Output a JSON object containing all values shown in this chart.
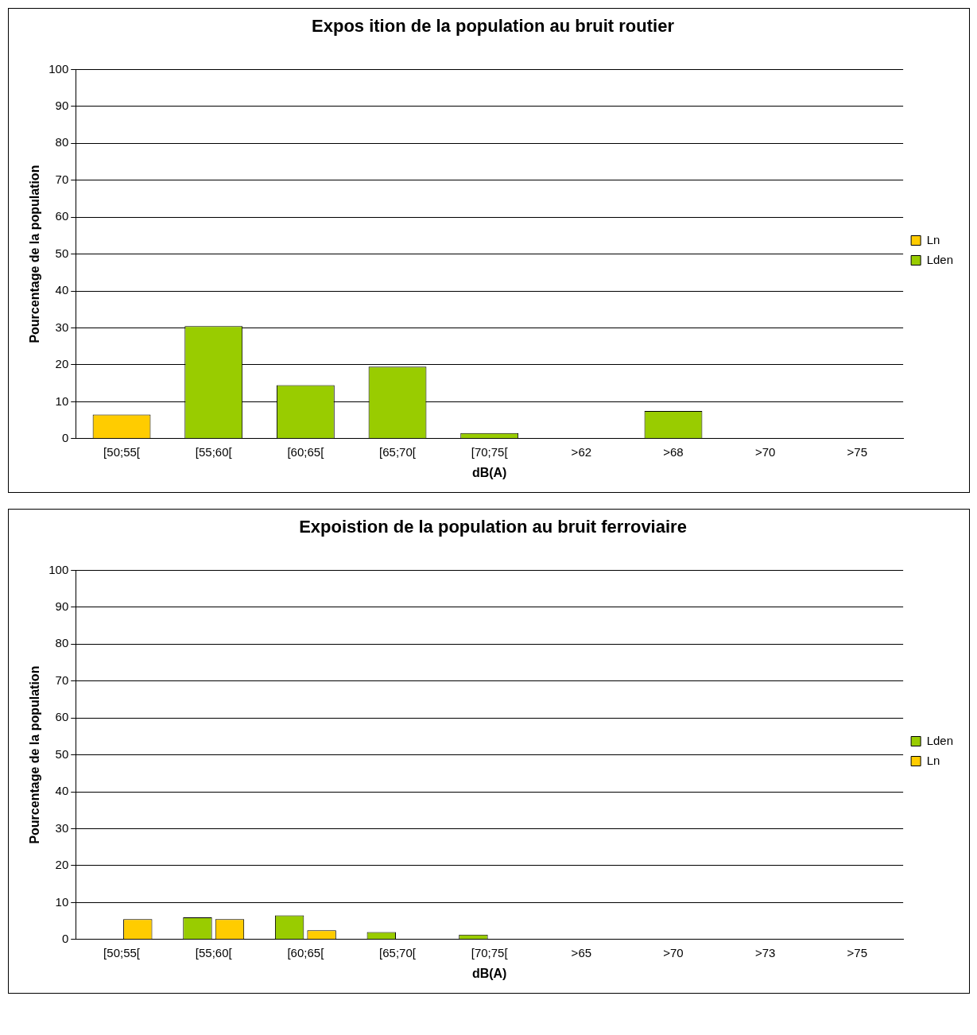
{
  "chart_data": [
    {
      "type": "bar",
      "title": "Expos ition de la population au bruit routier",
      "xlabel": "dB(A)",
      "ylabel": "Pourcentage de la population",
      "categories": [
        "[50;55[",
        "[55;60[",
        "[60;65[",
        "[65;70[",
        "[70;75[",
        ">62",
        ">68",
        ">70",
        ">75"
      ],
      "series": [
        {
          "name": "Ln",
          "color": "#ffcc00",
          "values": [
            6.5,
            null,
            null,
            null,
            null,
            null,
            null,
            null,
            null
          ]
        },
        {
          "name": "Lden",
          "color": "#99cc00",
          "values": [
            null,
            30.5,
            14.5,
            19.5,
            1.5,
            null,
            7.5,
            null,
            null
          ]
        }
      ],
      "ylim": [
        0,
        100
      ],
      "yticks": [
        0,
        10,
        20,
        30,
        40,
        50,
        60,
        70,
        80,
        90,
        100
      ],
      "grid": "y",
      "legend": "right"
    },
    {
      "type": "bar",
      "title": "Expoistion de la population au bruit ferroviaire",
      "xlabel": "dB(A)",
      "ylabel": "Pourcentage de la population",
      "categories": [
        "[50;55[",
        "[55;60[",
        "[60;65[",
        "[65;70[",
        "[70;75[",
        ">65",
        ">70",
        ">73",
        ">75"
      ],
      "series": [
        {
          "name": "Lden",
          "color": "#99cc00",
          "values": [
            0,
            6,
            6.5,
            2,
            1.3,
            0,
            0,
            0,
            0
          ]
        },
        {
          "name": "Ln",
          "color": "#ffcc00",
          "values": [
            5.5,
            5.5,
            2.5,
            0,
            0,
            0,
            0,
            0,
            0
          ]
        }
      ],
      "ylim": [
        0,
        100
      ],
      "yticks": [
        0,
        10,
        20,
        30,
        40,
        50,
        60,
        70,
        80,
        90,
        100
      ],
      "grid": "y",
      "legend": "right"
    }
  ]
}
